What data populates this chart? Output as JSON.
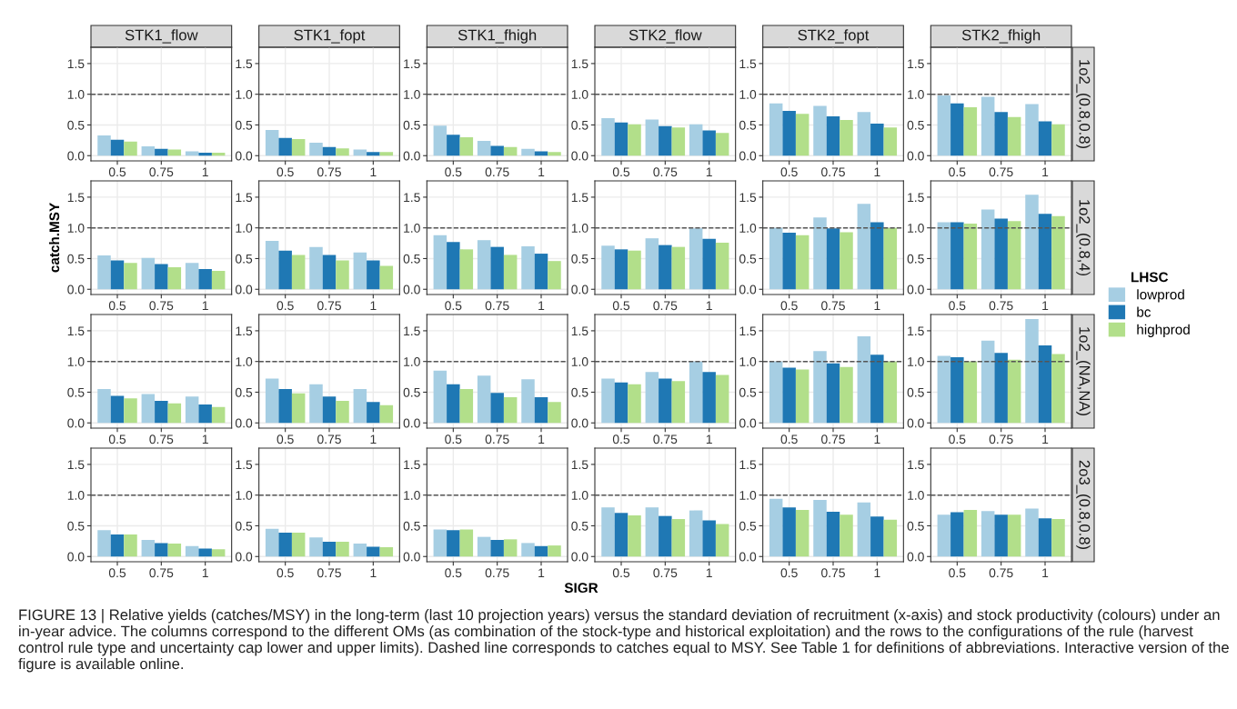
{
  "chart_data": [
    {
      "type": "bar",
      "title": "STK1_flow",
      "legend": "right",
      "legend_title": "LHSC",
      "annotations": [
        "FIGURE 13 | Relative yields (catches/MSY) in the long-term (last 10 projection years) versus the standard deviation of recruitment (x-axis) and stock productivity (colours) under an in-year advice. The columns correspond to the different OMs (as combination of the stock-type and historical exploitation) and the rows to the configurations of the rule (harvest control rule type and uncertainty cap lower and upper limits). Dashed line corresponds to catches equal to MSY. See Table 1 for definitions of abbreviations. Interactive version of the figure is available online."
      ],
      "categories": [
        "0.5",
        "0.75",
        "1"
      ],
      "ylim": [
        -0.085,
        1.765
      ],
      "yticks": [
        {
          "value": 0,
          "label": "0.0"
        },
        {
          "value": 0.5,
          "label": "0.5"
        },
        {
          "value": 1,
          "label": "1.0"
        },
        {
          "value": 1.5,
          "label": "1.5"
        }
      ],
      "grid": true,
      "ref_lines": [
        {
          "axis": "y",
          "value": 1,
          "line_style": "dashed",
          "color": "#555555"
        }
      ],
      "series": [
        {
          "name": "lowprod",
          "color": "#a6cee3",
          "values": [
            0.33,
            0.15,
            0.07
          ]
        },
        {
          "name": "bc",
          "color": "#1f78b4",
          "values": [
            0.26,
            0.11,
            0.05
          ]
        },
        {
          "name": "highprod",
          "color": "#b2df8a",
          "values": [
            0.23,
            0.1,
            0.05
          ]
        }
      ]
    },
    {
      "type": "bar",
      "title": "STK1_fopt",
      "categories": [
        "0.5",
        "0.75",
        "1"
      ],
      "ylim": [
        -0.085,
        1.765
      ],
      "yticks": [
        {
          "value": 0,
          "label": "0.0"
        },
        {
          "value": 0.5,
          "label": "0.5"
        },
        {
          "value": 1,
          "label": "1.0"
        },
        {
          "value": 1.5,
          "label": "1.5"
        }
      ],
      "grid": true,
      "ref_lines": [
        {
          "axis": "y",
          "value": 1,
          "line_style": "dashed",
          "color": "#555555"
        }
      ],
      "series": [
        {
          "color": "#a6cee3",
          "values": [
            0.42,
            0.21,
            0.1
          ]
        },
        {
          "color": "#1f78b4",
          "values": [
            0.29,
            0.14,
            0.06
          ]
        },
        {
          "color": "#b2df8a",
          "values": [
            0.27,
            0.12,
            0.06
          ]
        }
      ]
    },
    {
      "type": "bar",
      "title": "STK1_fhigh",
      "categories": [
        "0.5",
        "0.75",
        "1"
      ],
      "ylim": [
        -0.085,
        1.765
      ],
      "yticks": [
        {
          "value": 0,
          "label": "0.0"
        },
        {
          "value": 0.5,
          "label": "0.5"
        },
        {
          "value": 1,
          "label": "1.0"
        },
        {
          "value": 1.5,
          "label": "1.5"
        }
      ],
      "grid": true,
      "ref_lines": [
        {
          "axis": "y",
          "value": 1,
          "line_style": "dashed",
          "color": "#555555"
        }
      ],
      "series": [
        {
          "color": "#a6cee3",
          "values": [
            0.49,
            0.24,
            0.11
          ]
        },
        {
          "color": "#1f78b4",
          "values": [
            0.34,
            0.16,
            0.07
          ]
        },
        {
          "color": "#b2df8a",
          "values": [
            0.3,
            0.14,
            0.06
          ]
        }
      ]
    },
    {
      "type": "bar",
      "title": "STK2_flow",
      "categories": [
        "0.5",
        "0.75",
        "1"
      ],
      "ylim": [
        -0.085,
        1.765
      ],
      "yticks": [
        {
          "value": 0,
          "label": "0.0"
        },
        {
          "value": 0.5,
          "label": "0.5"
        },
        {
          "value": 1,
          "label": "1.0"
        },
        {
          "value": 1.5,
          "label": "1.5"
        }
      ],
      "grid": true,
      "ref_lines": [
        {
          "axis": "y",
          "value": 1,
          "line_style": "dashed",
          "color": "#555555"
        }
      ],
      "series": [
        {
          "color": "#a6cee3",
          "values": [
            0.61,
            0.59,
            0.51
          ]
        },
        {
          "color": "#1f78b4",
          "values": [
            0.54,
            0.48,
            0.41
          ]
        },
        {
          "color": "#b2df8a",
          "values": [
            0.51,
            0.46,
            0.37
          ]
        }
      ]
    },
    {
      "type": "bar",
      "title": "STK2_fopt",
      "categories": [
        "0.5",
        "0.75",
        "1"
      ],
      "ylim": [
        -0.085,
        1.765
      ],
      "yticks": [
        {
          "value": 0,
          "label": "0.0"
        },
        {
          "value": 0.5,
          "label": "0.5"
        },
        {
          "value": 1,
          "label": "1.0"
        },
        {
          "value": 1.5,
          "label": "1.5"
        }
      ],
      "grid": true,
      "ref_lines": [
        {
          "axis": "y",
          "value": 1,
          "line_style": "dashed",
          "color": "#555555"
        }
      ],
      "series": [
        {
          "color": "#a6cee3",
          "values": [
            0.85,
            0.81,
            0.71
          ]
        },
        {
          "color": "#1f78b4",
          "values": [
            0.73,
            0.64,
            0.52
          ]
        },
        {
          "color": "#b2df8a",
          "values": [
            0.68,
            0.58,
            0.46
          ]
        }
      ]
    },
    {
      "type": "bar",
      "title": "STK2_fhigh",
      "y2label": "1o2_(0.8,0.8)",
      "categories": [
        "0.5",
        "0.75",
        "1"
      ],
      "ylim": [
        -0.085,
        1.765
      ],
      "yticks": [
        {
          "value": 0,
          "label": "0.0"
        },
        {
          "value": 0.5,
          "label": "0.5"
        },
        {
          "value": 1,
          "label": "1.0"
        },
        {
          "value": 1.5,
          "label": "1.5"
        }
      ],
      "grid": true,
      "ref_lines": [
        {
          "axis": "y",
          "value": 1,
          "line_style": "dashed",
          "color": "#555555"
        }
      ],
      "series": [
        {
          "color": "#a6cee3",
          "values": [
            0.98,
            0.96,
            0.84
          ]
        },
        {
          "color": "#1f78b4",
          "values": [
            0.85,
            0.71,
            0.56
          ]
        },
        {
          "color": "#b2df8a",
          "values": [
            0.79,
            0.63,
            0.51
          ]
        }
      ]
    },
    {
      "type": "bar",
      "ylabel": "catch.MSY",
      "categories": [
        "0.5",
        "0.75",
        "1"
      ],
      "ylim": [
        -0.085,
        1.765
      ],
      "yticks": [
        {
          "value": 0,
          "label": "0.0"
        },
        {
          "value": 0.5,
          "label": "0.5"
        },
        {
          "value": 1,
          "label": "1.0"
        },
        {
          "value": 1.5,
          "label": "1.5"
        }
      ],
      "grid": true,
      "ref_lines": [
        {
          "axis": "y",
          "value": 1,
          "line_style": "dashed",
          "color": "#555555"
        }
      ],
      "series": [
        {
          "color": "#a6cee3",
          "values": [
            0.55,
            0.51,
            0.43
          ]
        },
        {
          "color": "#1f78b4",
          "values": [
            0.47,
            0.41,
            0.33
          ]
        },
        {
          "color": "#b2df8a",
          "values": [
            0.43,
            0.36,
            0.3
          ]
        }
      ]
    },
    {
      "type": "bar",
      "categories": [
        "0.5",
        "0.75",
        "1"
      ],
      "ylim": [
        -0.085,
        1.765
      ],
      "yticks": [
        {
          "value": 0,
          "label": "0.0"
        },
        {
          "value": 0.5,
          "label": "0.5"
        },
        {
          "value": 1,
          "label": "1.0"
        },
        {
          "value": 1.5,
          "label": "1.5"
        }
      ],
      "grid": true,
      "ref_lines": [
        {
          "axis": "y",
          "value": 1,
          "line_style": "dashed",
          "color": "#555555"
        }
      ],
      "series": [
        {
          "color": "#a6cee3",
          "values": [
            0.79,
            0.69,
            0.6
          ]
        },
        {
          "color": "#1f78b4",
          "values": [
            0.63,
            0.56,
            0.47
          ]
        },
        {
          "color": "#b2df8a",
          "values": [
            0.56,
            0.47,
            0.38
          ]
        }
      ]
    },
    {
      "type": "bar",
      "categories": [
        "0.5",
        "0.75",
        "1"
      ],
      "ylim": [
        -0.085,
        1.765
      ],
      "yticks": [
        {
          "value": 0,
          "label": "0.0"
        },
        {
          "value": 0.5,
          "label": "0.5"
        },
        {
          "value": 1,
          "label": "1.0"
        },
        {
          "value": 1.5,
          "label": "1.5"
        }
      ],
      "grid": true,
      "ref_lines": [
        {
          "axis": "y",
          "value": 1,
          "line_style": "dashed",
          "color": "#555555"
        }
      ],
      "series": [
        {
          "color": "#a6cee3",
          "values": [
            0.88,
            0.8,
            0.7
          ]
        },
        {
          "color": "#1f78b4",
          "values": [
            0.77,
            0.69,
            0.58
          ]
        },
        {
          "color": "#b2df8a",
          "values": [
            0.65,
            0.56,
            0.46
          ]
        }
      ]
    },
    {
      "type": "bar",
      "categories": [
        "0.5",
        "0.75",
        "1"
      ],
      "ylim": [
        -0.085,
        1.765
      ],
      "yticks": [
        {
          "value": 0,
          "label": "0.0"
        },
        {
          "value": 0.5,
          "label": "0.5"
        },
        {
          "value": 1,
          "label": "1.0"
        },
        {
          "value": 1.5,
          "label": "1.5"
        }
      ],
      "grid": true,
      "ref_lines": [
        {
          "axis": "y",
          "value": 1,
          "line_style": "dashed",
          "color": "#555555"
        }
      ],
      "series": [
        {
          "color": "#a6cee3",
          "values": [
            0.71,
            0.83,
            0.99
          ]
        },
        {
          "color": "#1f78b4",
          "values": [
            0.65,
            0.72,
            0.82
          ]
        },
        {
          "color": "#b2df8a",
          "values": [
            0.63,
            0.69,
            0.76
          ]
        }
      ]
    },
    {
      "type": "bar",
      "categories": [
        "0.5",
        "0.75",
        "1"
      ],
      "ylim": [
        -0.085,
        1.765
      ],
      "yticks": [
        {
          "value": 0,
          "label": "0.0"
        },
        {
          "value": 0.5,
          "label": "0.5"
        },
        {
          "value": 1,
          "label": "1.0"
        },
        {
          "value": 1.5,
          "label": "1.5"
        }
      ],
      "grid": true,
      "ref_lines": [
        {
          "axis": "y",
          "value": 1,
          "line_style": "dashed",
          "color": "#555555"
        }
      ],
      "series": [
        {
          "color": "#a6cee3",
          "values": [
            1.0,
            1.17,
            1.39
          ]
        },
        {
          "color": "#1f78b4",
          "values": [
            0.92,
            0.99,
            1.09
          ]
        },
        {
          "color": "#b2df8a",
          "values": [
            0.88,
            0.93,
            1.0
          ]
        }
      ]
    },
    {
      "type": "bar",
      "y2label": "1o2_(0.8,4)",
      "categories": [
        "0.5",
        "0.75",
        "1"
      ],
      "ylim": [
        -0.085,
        1.765
      ],
      "yticks": [
        {
          "value": 0,
          "label": "0.0"
        },
        {
          "value": 0.5,
          "label": "0.5"
        },
        {
          "value": 1,
          "label": "1.0"
        },
        {
          "value": 1.5,
          "label": "1.5"
        }
      ],
      "grid": true,
      "ref_lines": [
        {
          "axis": "y",
          "value": 1,
          "line_style": "dashed",
          "color": "#555555"
        }
      ],
      "series": [
        {
          "color": "#a6cee3",
          "values": [
            1.09,
            1.3,
            1.54
          ]
        },
        {
          "color": "#1f78b4",
          "values": [
            1.09,
            1.15,
            1.23
          ]
        },
        {
          "color": "#b2df8a",
          "values": [
            1.07,
            1.11,
            1.19
          ]
        }
      ]
    },
    {
      "type": "bar",
      "categories": [
        "0.5",
        "0.75",
        "1"
      ],
      "ylim": [
        -0.085,
        1.765
      ],
      "yticks": [
        {
          "value": 0,
          "label": "0.0"
        },
        {
          "value": 0.5,
          "label": "0.5"
        },
        {
          "value": 1,
          "label": "1.0"
        },
        {
          "value": 1.5,
          "label": "1.5"
        }
      ],
      "grid": true,
      "ref_lines": [
        {
          "axis": "y",
          "value": 1,
          "line_style": "dashed",
          "color": "#555555"
        }
      ],
      "series": [
        {
          "color": "#a6cee3",
          "values": [
            0.55,
            0.47,
            0.43
          ]
        },
        {
          "color": "#1f78b4",
          "values": [
            0.44,
            0.36,
            0.3
          ]
        },
        {
          "color": "#b2df8a",
          "values": [
            0.4,
            0.32,
            0.26
          ]
        }
      ]
    },
    {
      "type": "bar",
      "categories": [
        "0.5",
        "0.75",
        "1"
      ],
      "ylim": [
        -0.085,
        1.765
      ],
      "yticks": [
        {
          "value": 0,
          "label": "0.0"
        },
        {
          "value": 0.5,
          "label": "0.5"
        },
        {
          "value": 1,
          "label": "1.0"
        },
        {
          "value": 1.5,
          "label": "1.5"
        }
      ],
      "grid": true,
      "ref_lines": [
        {
          "axis": "y",
          "value": 1,
          "line_style": "dashed",
          "color": "#555555"
        }
      ],
      "series": [
        {
          "color": "#a6cee3",
          "values": [
            0.72,
            0.63,
            0.55
          ]
        },
        {
          "color": "#1f78b4",
          "values": [
            0.55,
            0.43,
            0.34
          ]
        },
        {
          "color": "#b2df8a",
          "values": [
            0.48,
            0.36,
            0.29
          ]
        }
      ]
    },
    {
      "type": "bar",
      "categories": [
        "0.5",
        "0.75",
        "1"
      ],
      "ylim": [
        -0.085,
        1.765
      ],
      "yticks": [
        {
          "value": 0,
          "label": "0.0"
        },
        {
          "value": 0.5,
          "label": "0.5"
        },
        {
          "value": 1,
          "label": "1.0"
        },
        {
          "value": 1.5,
          "label": "1.5"
        }
      ],
      "grid": true,
      "ref_lines": [
        {
          "axis": "y",
          "value": 1,
          "line_style": "dashed",
          "color": "#555555"
        }
      ],
      "series": [
        {
          "color": "#a6cee3",
          "values": [
            0.85,
            0.77,
            0.71
          ]
        },
        {
          "color": "#1f78b4",
          "values": [
            0.63,
            0.49,
            0.42
          ]
        },
        {
          "color": "#b2df8a",
          "values": [
            0.55,
            0.42,
            0.34
          ]
        }
      ]
    },
    {
      "type": "bar",
      "categories": [
        "0.5",
        "0.75",
        "1"
      ],
      "ylim": [
        -0.085,
        1.765
      ],
      "yticks": [
        {
          "value": 0,
          "label": "0.0"
        },
        {
          "value": 0.5,
          "label": "0.5"
        },
        {
          "value": 1,
          "label": "1.0"
        },
        {
          "value": 1.5,
          "label": "1.5"
        }
      ],
      "grid": true,
      "ref_lines": [
        {
          "axis": "y",
          "value": 1,
          "line_style": "dashed",
          "color": "#555555"
        }
      ],
      "series": [
        {
          "color": "#a6cee3",
          "values": [
            0.72,
            0.83,
            1.0
          ]
        },
        {
          "color": "#1f78b4",
          "values": [
            0.66,
            0.72,
            0.83
          ]
        },
        {
          "color": "#b2df8a",
          "values": [
            0.63,
            0.68,
            0.78
          ]
        }
      ]
    },
    {
      "type": "bar",
      "categories": [
        "0.5",
        "0.75",
        "1"
      ],
      "ylim": [
        -0.085,
        1.765
      ],
      "yticks": [
        {
          "value": 0,
          "label": "0.0"
        },
        {
          "value": 0.5,
          "label": "0.5"
        },
        {
          "value": 1,
          "label": "1.0"
        },
        {
          "value": 1.5,
          "label": "1.5"
        }
      ],
      "grid": true,
      "ref_lines": [
        {
          "axis": "y",
          "value": 1,
          "line_style": "dashed",
          "color": "#555555"
        }
      ],
      "series": [
        {
          "color": "#a6cee3",
          "values": [
            1.0,
            1.17,
            1.41
          ]
        },
        {
          "color": "#1f78b4",
          "values": [
            0.9,
            0.97,
            1.11
          ]
        },
        {
          "color": "#b2df8a",
          "values": [
            0.87,
            0.91,
            1.0
          ]
        }
      ]
    },
    {
      "type": "bar",
      "y2label": "1o2_(NA,NA)",
      "categories": [
        "0.5",
        "0.75",
        "1"
      ],
      "ylim": [
        -0.085,
        1.765
      ],
      "yticks": [
        {
          "value": 0,
          "label": "0.0"
        },
        {
          "value": 0.5,
          "label": "0.5"
        },
        {
          "value": 1,
          "label": "1.0"
        },
        {
          "value": 1.5,
          "label": "1.5"
        }
      ],
      "grid": true,
      "ref_lines": [
        {
          "axis": "y",
          "value": 1,
          "line_style": "dashed",
          "color": "#555555"
        }
      ],
      "series": [
        {
          "color": "#a6cee3",
          "values": [
            1.09,
            1.34,
            1.69
          ]
        },
        {
          "color": "#1f78b4",
          "values": [
            1.07,
            1.14,
            1.26
          ]
        },
        {
          "color": "#b2df8a",
          "values": [
            1.0,
            1.03,
            1.12
          ]
        }
      ]
    },
    {
      "type": "bar",
      "categories": [
        "0.5",
        "0.75",
        "1"
      ],
      "ylim": [
        -0.085,
        1.765
      ],
      "yticks": [
        {
          "value": 0,
          "label": "0.0"
        },
        {
          "value": 0.5,
          "label": "0.5"
        },
        {
          "value": 1,
          "label": "1.0"
        },
        {
          "value": 1.5,
          "label": "1.5"
        }
      ],
      "grid": true,
      "ref_lines": [
        {
          "axis": "y",
          "value": 1,
          "line_style": "dashed",
          "color": "#555555"
        }
      ],
      "series": [
        {
          "color": "#a6cee3",
          "values": [
            0.43,
            0.27,
            0.17
          ]
        },
        {
          "color": "#1f78b4",
          "values": [
            0.36,
            0.22,
            0.13
          ]
        },
        {
          "color": "#b2df8a",
          "values": [
            0.36,
            0.21,
            0.12
          ]
        }
      ]
    },
    {
      "type": "bar",
      "categories": [
        "0.5",
        "0.75",
        "1"
      ],
      "ylim": [
        -0.085,
        1.765
      ],
      "yticks": [
        {
          "value": 0,
          "label": "0.0"
        },
        {
          "value": 0.5,
          "label": "0.5"
        },
        {
          "value": 1,
          "label": "1.0"
        },
        {
          "value": 1.5,
          "label": "1.5"
        }
      ],
      "grid": true,
      "ref_lines": [
        {
          "axis": "y",
          "value": 1,
          "line_style": "dashed",
          "color": "#555555"
        }
      ],
      "series": [
        {
          "color": "#a6cee3",
          "values": [
            0.45,
            0.31,
            0.21
          ]
        },
        {
          "color": "#1f78b4",
          "values": [
            0.39,
            0.24,
            0.16
          ]
        },
        {
          "color": "#b2df8a",
          "values": [
            0.39,
            0.24,
            0.15
          ]
        }
      ]
    },
    {
      "type": "bar",
      "xlabel": "SIGR",
      "categories": [
        "0.5",
        "0.75",
        "1"
      ],
      "ylim": [
        -0.085,
        1.765
      ],
      "yticks": [
        {
          "value": 0,
          "label": "0.0"
        },
        {
          "value": 0.5,
          "label": "0.5"
        },
        {
          "value": 1,
          "label": "1.0"
        },
        {
          "value": 1.5,
          "label": "1.5"
        }
      ],
      "grid": true,
      "ref_lines": [
        {
          "axis": "y",
          "value": 1,
          "line_style": "dashed",
          "color": "#555555"
        }
      ],
      "series": [
        {
          "color": "#a6cee3",
          "values": [
            0.44,
            0.32,
            0.22
          ]
        },
        {
          "color": "#1f78b4",
          "values": [
            0.43,
            0.27,
            0.17
          ]
        },
        {
          "color": "#b2df8a",
          "values": [
            0.44,
            0.28,
            0.18
          ]
        }
      ]
    },
    {
      "type": "bar",
      "categories": [
        "0.5",
        "0.75",
        "1"
      ],
      "ylim": [
        -0.085,
        1.765
      ],
      "yticks": [
        {
          "value": 0,
          "label": "0.0"
        },
        {
          "value": 0.5,
          "label": "0.5"
        },
        {
          "value": 1,
          "label": "1.0"
        },
        {
          "value": 1.5,
          "label": "1.5"
        }
      ],
      "grid": true,
      "ref_lines": [
        {
          "axis": "y",
          "value": 1,
          "line_style": "dashed",
          "color": "#555555"
        }
      ],
      "series": [
        {
          "color": "#a6cee3",
          "values": [
            0.8,
            0.8,
            0.75
          ]
        },
        {
          "color": "#1f78b4",
          "values": [
            0.71,
            0.66,
            0.59
          ]
        },
        {
          "color": "#b2df8a",
          "values": [
            0.67,
            0.61,
            0.53
          ]
        }
      ]
    },
    {
      "type": "bar",
      "categories": [
        "0.5",
        "0.75",
        "1"
      ],
      "ylim": [
        -0.085,
        1.765
      ],
      "yticks": [
        {
          "value": 0,
          "label": "0.0"
        },
        {
          "value": 0.5,
          "label": "0.5"
        },
        {
          "value": 1,
          "label": "1.0"
        },
        {
          "value": 1.5,
          "label": "1.5"
        }
      ],
      "grid": true,
      "ref_lines": [
        {
          "axis": "y",
          "value": 1,
          "line_style": "dashed",
          "color": "#555555"
        }
      ],
      "series": [
        {
          "color": "#a6cee3",
          "values": [
            0.94,
            0.92,
            0.88
          ]
        },
        {
          "color": "#1f78b4",
          "values": [
            0.8,
            0.73,
            0.65
          ]
        },
        {
          "color": "#b2df8a",
          "values": [
            0.76,
            0.68,
            0.6
          ]
        }
      ]
    },
    {
      "type": "bar",
      "y2label": "2o3_(0.8,0.8)",
      "categories": [
        "0.5",
        "0.75",
        "1"
      ],
      "ylim": [
        -0.085,
        1.765
      ],
      "yticks": [
        {
          "value": 0,
          "label": "0.0"
        },
        {
          "value": 0.5,
          "label": "0.5"
        },
        {
          "value": 1,
          "label": "1.0"
        },
        {
          "value": 1.5,
          "label": "1.5"
        }
      ],
      "grid": true,
      "ref_lines": [
        {
          "axis": "y",
          "value": 1,
          "line_style": "dashed",
          "color": "#555555"
        }
      ],
      "series": [
        {
          "color": "#a6cee3",
          "values": [
            0.68,
            0.74,
            0.78
          ]
        },
        {
          "color": "#1f78b4",
          "values": [
            0.72,
            0.68,
            0.62
          ]
        },
        {
          "color": "#b2df8a",
          "values": [
            0.76,
            0.68,
            0.61
          ]
        }
      ]
    }
  ]
}
